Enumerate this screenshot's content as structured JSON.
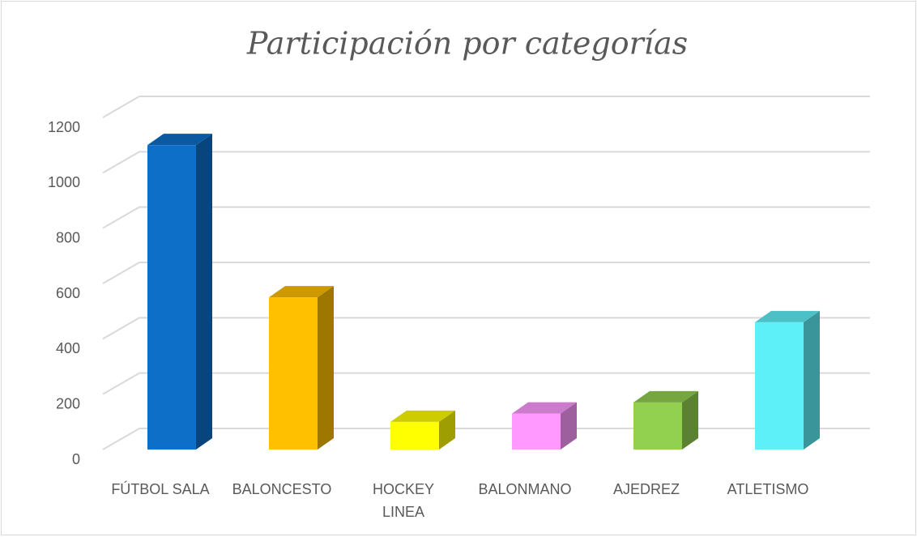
{
  "chart_data": {
    "type": "bar3d",
    "title": "Participación por categorías",
    "categories": [
      "FÚTBOL SALA",
      "BALONCESTO",
      "HOCKEY LINEA",
      "BALONMANO",
      "AJEDREZ",
      "ATLETISMO"
    ],
    "values": [
      1100,
      550,
      100,
      130,
      170,
      460
    ],
    "colors": [
      "#0e6fc9",
      "#ffc000",
      "#ffff00",
      "#ff99ff",
      "#92d050",
      "#5ef0f8"
    ],
    "ylim": [
      0,
      1200
    ],
    "yticks": [
      0,
      200,
      400,
      600,
      800,
      1000,
      1200
    ],
    "grid": true
  }
}
